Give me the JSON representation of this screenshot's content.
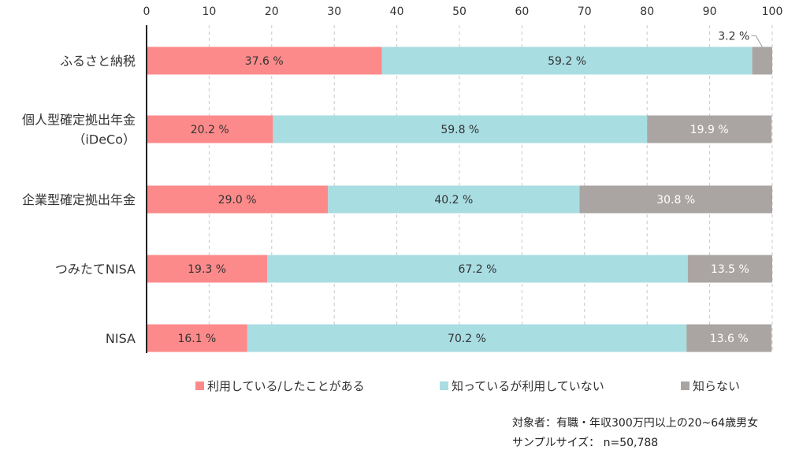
{
  "chart_data": {
    "type": "bar",
    "orientation": "horizontal",
    "stacked": true,
    "xlim": [
      0,
      100
    ],
    "x_ticks": [
      "0",
      "10",
      "20",
      "30",
      "40",
      "50",
      "60",
      "70",
      "80",
      "90",
      "100"
    ],
    "grid": "vertical dashed",
    "legend_position": "bottom",
    "categories": [
      [
        "ふるさと納税"
      ],
      [
        "個人型確定拠出年金",
        "（iDeCo）"
      ],
      [
        "企業型確定拠出年金"
      ],
      [
        "つみたてNISA"
      ],
      [
        "NISA"
      ]
    ],
    "series": [
      {
        "name": "利用している/したことがある",
        "color": "#fd8a8a",
        "values": [
          37.6,
          20.2,
          29.0,
          19.3,
          16.1
        ],
        "labels": [
          "37.6 %",
          "20.2 %",
          "29.0 %",
          "19.3 %",
          "16.1 %"
        ]
      },
      {
        "name": "知っているが利用していない",
        "color": "#a8dde2",
        "values": [
          59.2,
          59.8,
          40.2,
          67.2,
          70.2
        ],
        "labels": [
          "59.2 %",
          "59.8 %",
          "40.2 %",
          "67.2 %",
          "70.2 %"
        ]
      },
      {
        "name": "知らない",
        "color": "#aaa5a3",
        "values": [
          3.2,
          19.9,
          30.8,
          13.5,
          13.6
        ],
        "labels": [
          "3.2 %",
          "19.9 %",
          "30.8 %",
          "13.5 %",
          "13.6 %"
        ]
      }
    ]
  },
  "notes": {
    "target": "対象者：有職・年収300万円以上の20~64歳男女",
    "sample": "サンプルサイズ： n=50,788"
  }
}
